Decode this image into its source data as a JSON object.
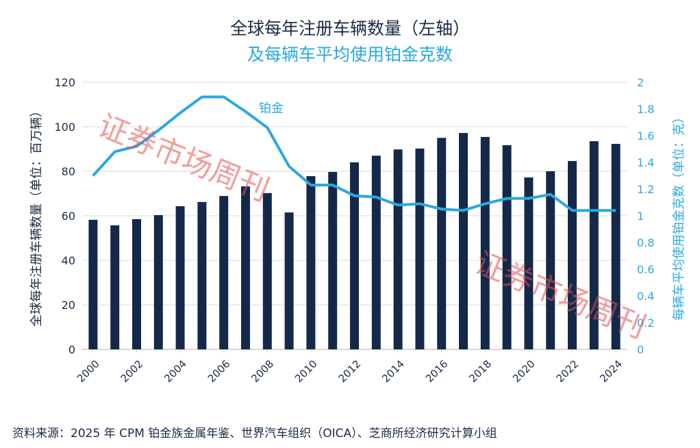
{
  "chart_data": {
    "type": "bar+line",
    "title": "全球每年注册车辆数量（左轴）",
    "subtitle": "及每辆车平均使用铂金克数",
    "ylabel_left": "全球每年注册车辆数量（单位：百万辆）",
    "ylabel_right": "每辆车平均使用铂金克数（单位：克）",
    "categories": [
      2000,
      2001,
      2002,
      2003,
      2004,
      2005,
      2006,
      2007,
      2008,
      2009,
      2010,
      2011,
      2012,
      2013,
      2014,
      2015,
      2016,
      2017,
      2018,
      2019,
      2020,
      2021,
      2022,
      2023,
      2024
    ],
    "x_tick_labels": [
      "2000",
      "2002",
      "2004",
      "2006",
      "2008",
      "2010",
      "2012",
      "2014",
      "2016",
      "2018",
      "2020",
      "2022",
      "2024"
    ],
    "ylim_left": [
      0,
      120
    ],
    "yticks_left": [
      "0",
      "20",
      "40",
      "60",
      "80",
      "100",
      "120"
    ],
    "ylim_right": [
      0,
      2
    ],
    "yticks_right": [
      "0",
      "0.2",
      "0.4",
      "0.6",
      "0.8",
      "1",
      "1.2",
      "1.4",
      "1.6",
      "1.8",
      "2"
    ],
    "grid": true,
    "series": [
      {
        "type": "bar",
        "axis": "left",
        "color": "#14294a",
        "values": [
          58.2,
          55.7,
          58.5,
          60.3,
          64.3,
          66.2,
          68.9,
          73.2,
          70.2,
          61.5,
          77.8,
          79.7,
          84.0,
          87.0,
          89.8,
          90.2,
          95.0,
          97.2,
          95.4,
          91.7,
          77.2,
          80.0,
          84.6,
          93.5,
          92.3
        ]
      },
      {
        "type": "line",
        "axis": "right",
        "name": "铂金",
        "color": "#29a8e0",
        "values": [
          1.3,
          1.48,
          1.52,
          1.64,
          1.77,
          1.89,
          1.89,
          1.78,
          1.66,
          1.37,
          1.23,
          1.23,
          1.15,
          1.14,
          1.08,
          1.09,
          1.05,
          1.04,
          1.09,
          1.13,
          1.13,
          1.16,
          1.04,
          1.04,
          1.04
        ]
      }
    ]
  },
  "source": "资料来源：2025 年 CPM 铂金族金属年鉴、世界汽车组织（OICA）、芝商所经济研究计算小组",
  "watermark": "证券市场周刊"
}
